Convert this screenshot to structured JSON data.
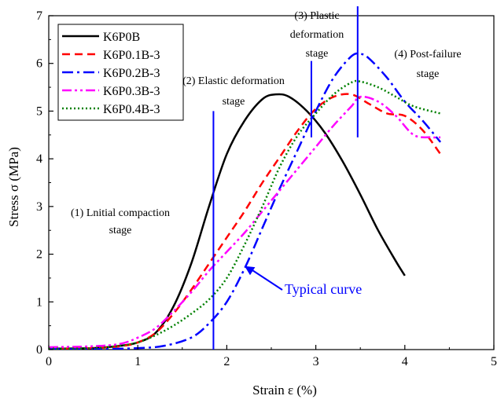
{
  "chart_data": {
    "type": "line",
    "xlabel": "Strain ε (%)",
    "ylabel": "Stress σ (MPa)",
    "xlim": [
      0,
      5
    ],
    "ylim": [
      0,
      7
    ],
    "xticks": [
      0,
      1,
      2,
      3,
      4,
      5
    ],
    "yticks": [
      0,
      1,
      2,
      3,
      4,
      5,
      6,
      7
    ],
    "grid": false,
    "legend_position": "top-left",
    "series": [
      {
        "name": "K6P0B",
        "color": "#000000",
        "dash": "solid",
        "x": [
          0,
          0.5,
          0.8,
          1.0,
          1.2,
          1.4,
          1.6,
          1.8,
          2.0,
          2.2,
          2.4,
          2.55,
          2.7,
          2.9,
          3.1,
          3.3,
          3.5,
          3.7,
          3.9,
          4.0
        ],
        "y": [
          0.02,
          0.03,
          0.08,
          0.15,
          0.35,
          0.9,
          1.8,
          3.0,
          4.1,
          4.8,
          5.25,
          5.35,
          5.3,
          5.0,
          4.55,
          3.95,
          3.25,
          2.5,
          1.85,
          1.55
        ]
      },
      {
        "name": "K6P0.1B-3",
        "color": "#ff0000",
        "dash": "dash",
        "x": [
          0,
          0.5,
          0.8,
          1.0,
          1.2,
          1.4,
          1.6,
          1.8,
          2.0,
          2.2,
          2.4,
          2.6,
          2.8,
          3.0,
          3.2,
          3.4,
          3.6,
          3.8,
          4.0,
          4.2,
          4.4
        ],
        "y": [
          0.02,
          0.03,
          0.07,
          0.15,
          0.35,
          0.75,
          1.25,
          1.8,
          2.35,
          2.9,
          3.5,
          4.05,
          4.6,
          5.05,
          5.3,
          5.35,
          5.15,
          4.95,
          4.9,
          4.6,
          4.1
        ]
      },
      {
        "name": "K6P0.2B-3",
        "color": "#0000ff",
        "dash": "dashdot",
        "x": [
          0,
          0.5,
          1.0,
          1.3,
          1.6,
          1.8,
          2.0,
          2.2,
          2.4,
          2.6,
          2.8,
          3.0,
          3.2,
          3.4,
          3.5,
          3.6,
          3.8,
          4.0,
          4.2,
          4.4
        ],
        "y": [
          0.01,
          0.01,
          0.03,
          0.08,
          0.25,
          0.55,
          1.0,
          1.7,
          2.55,
          3.4,
          4.2,
          5.0,
          5.7,
          6.15,
          6.2,
          6.1,
          5.7,
          5.2,
          4.8,
          4.35
        ]
      },
      {
        "name": "K6P0.3B-3",
        "color": "#ff00ff",
        "dash": "dashdotdot",
        "x": [
          0,
          0.5,
          0.8,
          1.0,
          1.2,
          1.4,
          1.6,
          1.8,
          2.0,
          2.2,
          2.4,
          2.6,
          2.8,
          3.0,
          3.2,
          3.4,
          3.5,
          3.7,
          3.9,
          4.1,
          4.3,
          4.4
        ],
        "y": [
          0.05,
          0.07,
          0.12,
          0.25,
          0.45,
          0.8,
          1.2,
          1.65,
          2.05,
          2.45,
          2.9,
          3.35,
          3.8,
          4.25,
          4.7,
          5.1,
          5.3,
          5.2,
          4.9,
          4.5,
          4.45,
          4.45
        ]
      },
      {
        "name": "K6P0.4B-3",
        "color": "#008000",
        "dash": "dot",
        "x": [
          0,
          0.5,
          0.8,
          1.0,
          1.2,
          1.4,
          1.6,
          1.8,
          2.0,
          2.2,
          2.4,
          2.6,
          2.8,
          3.0,
          3.2,
          3.4,
          3.5,
          3.7,
          3.9,
          4.1,
          4.4
        ],
        "y": [
          0.02,
          0.03,
          0.08,
          0.15,
          0.3,
          0.5,
          0.75,
          1.05,
          1.5,
          2.2,
          3.0,
          3.85,
          4.5,
          4.95,
          5.35,
          5.6,
          5.62,
          5.5,
          5.3,
          5.1,
          4.95
        ]
      }
    ],
    "stage_lines": {
      "color": "#0000ff",
      "lines": [
        {
          "x": 1.85,
          "y0": 0,
          "y1": 5.0
        },
        {
          "x": 2.95,
          "y0": 4.45,
          "y1": 6.05
        },
        {
          "x": 3.47,
          "y0": 4.45,
          "y1": 7.3
        }
      ]
    },
    "annotations": [
      {
        "id": "stage1",
        "lines": [
          "(1) Lnitial compaction",
          "stage"
        ]
      },
      {
        "id": "stage2",
        "lines": [
          "(2) Elastic deformation",
          "stage"
        ]
      },
      {
        "id": "stage3",
        "lines": [
          "(3) Plastic",
          "deformation",
          "stage"
        ]
      },
      {
        "id": "stage4",
        "lines": [
          "(4) Post-failure",
          "stage"
        ]
      }
    ],
    "callout": {
      "text": "Typical curve",
      "color": "#0000ff",
      "arrow_to": {
        "x": 2.2,
        "y": 1.75
      }
    }
  }
}
